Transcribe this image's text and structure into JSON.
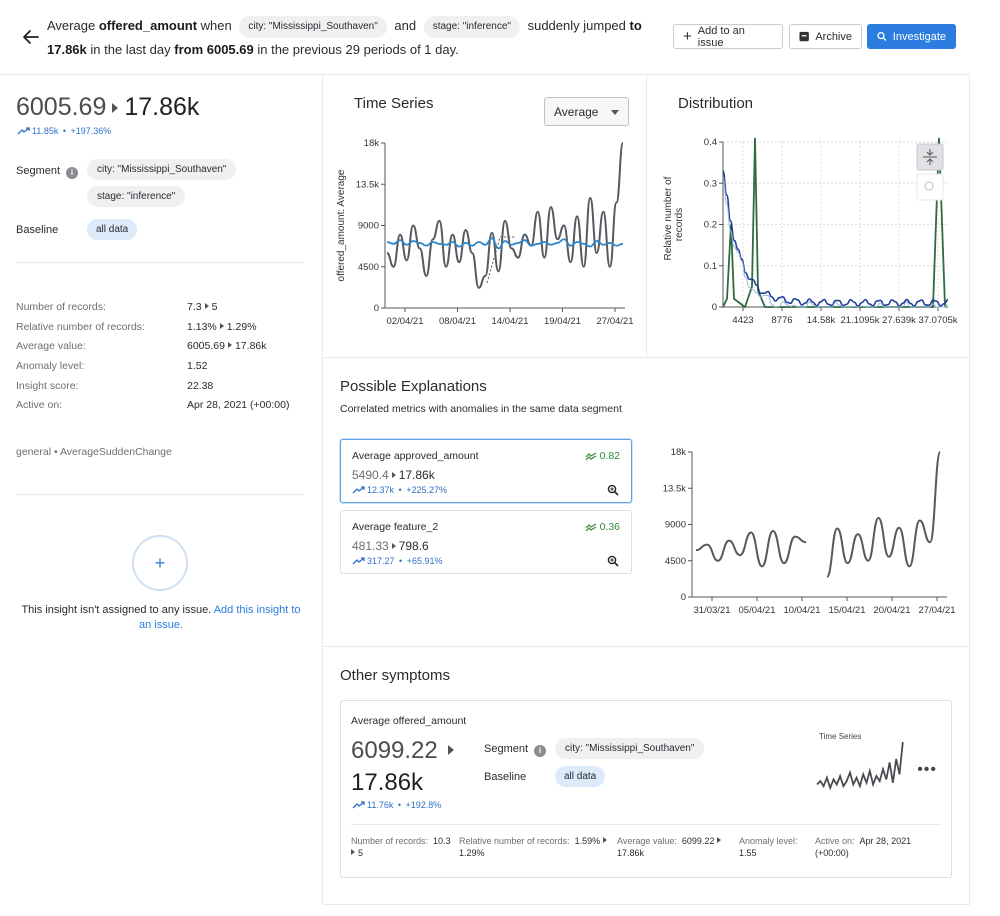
{
  "header": {
    "title_prefix": "Average",
    "metric": "offered_amount",
    "when": "when",
    "chip_city": "city: \"Mississippi_Southaven\"",
    "and": "and",
    "chip_stage": "stage: \"inference\"",
    "jumped": "suddenly jumped",
    "to_value": "to 17.86k",
    "in_the": "in the last day",
    "from_value": "from 6005.69",
    "rest": "in the previous 29 periods of 1 day.",
    "btn_add_issue": "Add to an issue",
    "btn_archive": "Archive",
    "btn_investigate": "Investigate"
  },
  "summary": {
    "from": "6005.69",
    "to": "17.86k",
    "delta_abs": "11.85k",
    "delta_pct": "+197.36%",
    "segment_label": "Segment",
    "segment_chips": [
      "city: \"Mississippi_Southaven\"",
      "stage: \"inference\""
    ],
    "baseline_label": "Baseline",
    "baseline_chip": "all data",
    "stats": [
      {
        "k": "Number of records:",
        "from": "7.3",
        "to": "5"
      },
      {
        "k": "Relative number of records:",
        "from": "1.13%",
        "to": "1.29%"
      },
      {
        "k": "Average value:",
        "from": "6005.69",
        "to": "17.86k"
      },
      {
        "k": "Anomaly level:",
        "v": "1.52"
      },
      {
        "k": "Insight score:",
        "v": "22.38"
      },
      {
        "k": "Active on:",
        "v": "Apr 28, 2021 (+00:00)"
      }
    ],
    "tag": "general • AverageSuddenChange",
    "assign_text": "This insight isn't assigned to any issue.",
    "assign_link": "Add this insight to an issue."
  },
  "time_series": {
    "title": "Time Series",
    "agg_select": "Average"
  },
  "distribution": {
    "title": "Distribution"
  },
  "explanations": {
    "title": "Possible Explanations",
    "subtitle": "Correlated metrics with anomalies in the same data segment",
    "cards": [
      {
        "name": "Average approved_amount",
        "corr": "0.82",
        "from": "5490.4",
        "to": "17.86k",
        "delta_abs": "12.37k",
        "delta_pct": "+225.27%"
      },
      {
        "name": "Average feature_2",
        "corr": "0.36",
        "from": "481.33",
        "to": "798.6",
        "delta_abs": "317.27",
        "delta_pct": "+65.91%"
      }
    ]
  },
  "other_symptoms": {
    "title": "Other symptoms",
    "name": "Average offered_amount",
    "from": "6099.22",
    "to": "17.86k",
    "delta_abs": "11.76k",
    "delta_pct": "+192.8%",
    "segment_label": "Segment",
    "segment_chip": "city: \"Mississippi_Southaven\"",
    "baseline_label": "Baseline",
    "baseline_chip": "all data",
    "spark_label": "Time Series",
    "footer": [
      {
        "k": "Number of records:",
        "from": "10.3",
        "to": "5"
      },
      {
        "k": "Relative number of records:",
        "from": "1.59%",
        "to": "1.29%"
      },
      {
        "k": "Average value:",
        "from": "6099.22",
        "to": "17.86k"
      },
      {
        "k": "Anomaly level:",
        "v": "1.55"
      },
      {
        "k": "Active on:",
        "v": "Apr 28, 2021 (+00:00)"
      }
    ]
  },
  "chart_data": [
    {
      "type": "line",
      "title": "Time Series",
      "ylabel": "offered_amount: Average",
      "ylim": [
        0,
        18000
      ],
      "yticks": [
        "0",
        "4500",
        "9000",
        "13.5k",
        "18k"
      ],
      "xticks": [
        "02/04/21",
        "08/04/21",
        "14/04/21",
        "19/04/21",
        "27/04/21"
      ],
      "series": [
        {
          "name": "segment",
          "color": "#555a61",
          "values": [
            6000,
            4500,
            8000,
            5200,
            9000,
            6500,
            3500,
            7500,
            9500,
            4500,
            8000,
            5000,
            8500,
            6000,
            2200,
            3500,
            8200,
            4000,
            9500,
            6500,
            5500,
            8000,
            6800,
            10500,
            5500,
            11000,
            7500,
            9000,
            5000,
            10000,
            4500,
            12000,
            6000,
            10500,
            4500,
            11500,
            18000
          ]
        },
        {
          "name": "baseline",
          "color": "#2f86c8",
          "values": [
            7200,
            7000,
            7400,
            6900,
            7300,
            7100,
            6800,
            7200,
            7000,
            6900,
            7200,
            6700,
            7100,
            6800,
            7200,
            6900,
            7600,
            6500,
            7300,
            6900,
            7100,
            7400,
            6800,
            7000,
            7200,
            6900,
            7100,
            7500,
            6800,
            7200,
            7000,
            6700,
            7300,
            6900,
            7100,
            6800,
            7000
          ]
        }
      ]
    },
    {
      "type": "line",
      "title": "Distribution",
      "ylabel": "Relative number of records",
      "ylim": [
        0,
        0.4
      ],
      "yticks": [
        "0",
        "0.1",
        "0.2",
        "0.3",
        "0.4"
      ],
      "xticks": [
        "4423",
        "8776",
        "14.58k",
        "21.1095k",
        "27.639k",
        "37.0705k"
      ]
    },
    {
      "type": "line",
      "title": "Average approved_amount",
      "ylim": [
        0,
        18000
      ],
      "yticks": [
        "0",
        "4500",
        "9000",
        "13.5k",
        "18k"
      ],
      "xticks": [
        "31/03/21",
        "05/04/21",
        "10/04/21",
        "15/04/21",
        "20/04/21",
        "27/04/21"
      ]
    },
    {
      "type": "line",
      "title": "Time Series",
      "ylim": [
        0,
        18000
      ]
    }
  ]
}
